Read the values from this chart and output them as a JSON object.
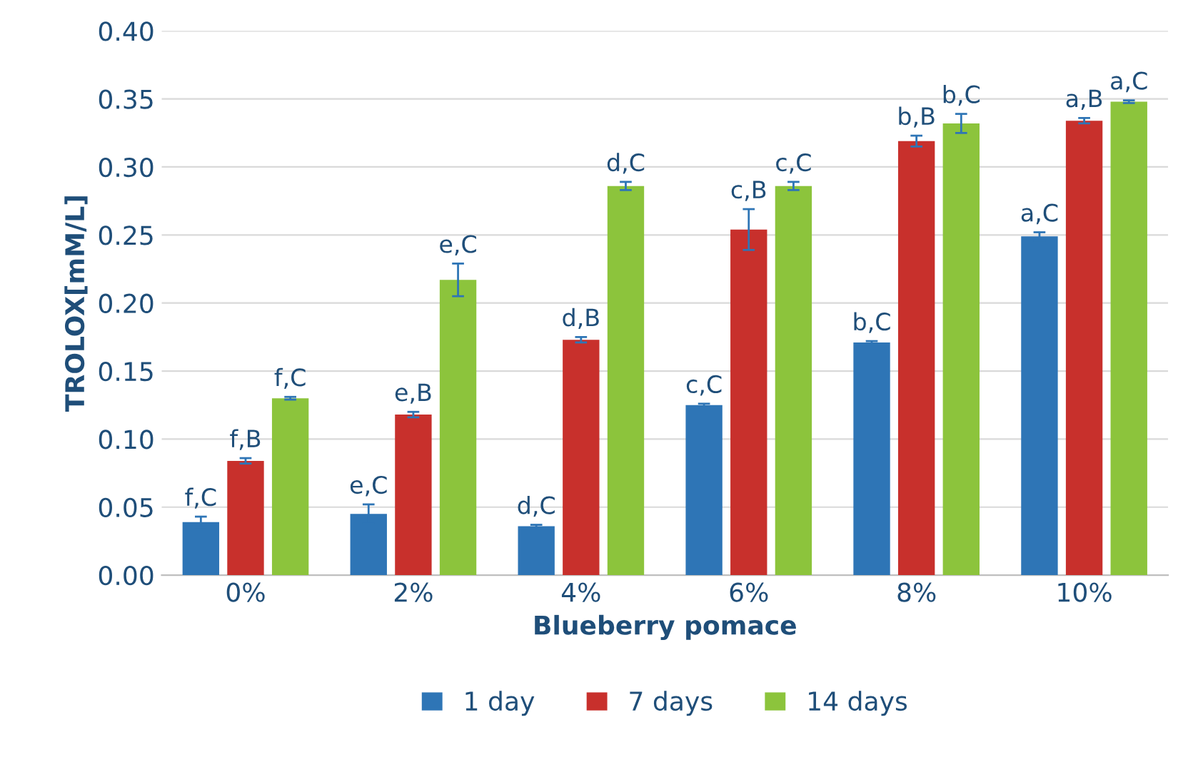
{
  "chart_data": {
    "type": "bar",
    "xlabel": "Blueberry pomace",
    "ylabel": "TROLOX[mM/L]",
    "categories": [
      "0%",
      "2%",
      "4%",
      "6%",
      "8%",
      "10%"
    ],
    "series": [
      {
        "name": "1 day",
        "color": "#2e75b6",
        "values": [
          0.039,
          0.045,
          0.036,
          0.125,
          0.171,
          0.249
        ],
        "errors": [
          0.004,
          0.007,
          0.001,
          0.001,
          0.001,
          0.003
        ],
        "value_labels": [
          "f,C",
          "e,C",
          "d,C",
          "c,C",
          "b,C",
          "a,C"
        ]
      },
      {
        "name": "7 days",
        "color": "#c8302c",
        "values": [
          0.084,
          0.118,
          0.173,
          0.254,
          0.319,
          0.334
        ],
        "errors": [
          0.002,
          0.002,
          0.002,
          0.015,
          0.004,
          0.002
        ],
        "value_labels": [
          "f,B",
          "e,B",
          "d,B",
          "c,B",
          "b,B",
          "a,B"
        ]
      },
      {
        "name": "14 days",
        "color": "#8cc43c",
        "values": [
          0.13,
          0.217,
          0.286,
          0.286,
          0.332,
          0.348
        ],
        "errors": [
          0.001,
          0.012,
          0.003,
          0.003,
          0.007,
          0.001
        ],
        "value_labels": [
          "f,C",
          "e,C",
          "d,C",
          "c,C",
          "b,C",
          "a,C"
        ]
      }
    ],
    "ylim": [
      0,
      0.4
    ],
    "yticks": [
      {
        "value": 0,
        "label": "0.00"
      },
      {
        "value": 0.05,
        "label": "0.05"
      },
      {
        "value": 0.1,
        "label": "0.10"
      },
      {
        "value": 0.15,
        "label": "0.15"
      },
      {
        "value": 0.2,
        "label": "0.20"
      },
      {
        "value": 0.25,
        "label": "0.25"
      },
      {
        "value": 0.3,
        "label": "0.30"
      },
      {
        "value": 0.35,
        "label": "0.35"
      },
      {
        "value": 0.4,
        "label": "0.40"
      }
    ],
    "grid": "y",
    "legend": "bottom"
  }
}
